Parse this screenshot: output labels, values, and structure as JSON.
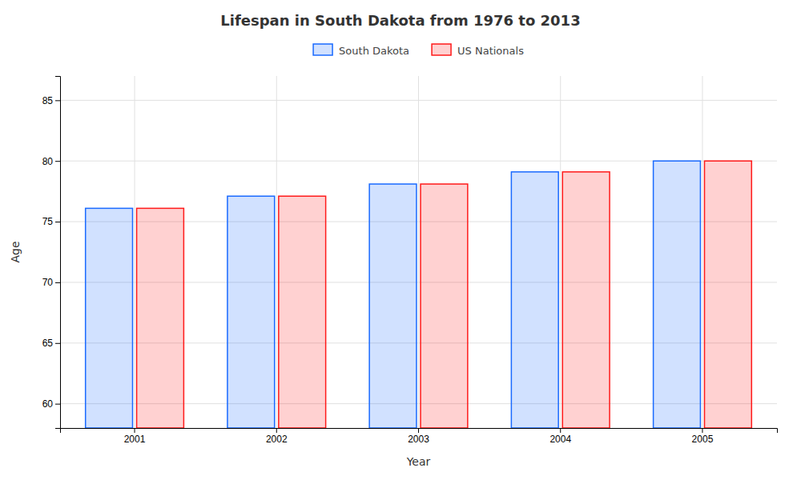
{
  "chart_data": {
    "type": "bar",
    "title": "Lifespan in South Dakota from 1976 to 2013",
    "x_label": "Year",
    "y_label": "Age",
    "categories": [
      "2001",
      "2002",
      "2003",
      "2004",
      "2005"
    ],
    "series": [
      {
        "name": "South Dakota",
        "color": "#1a6aff",
        "values": [
          76.1,
          77.1,
          78.1,
          79.1,
          80.0
        ]
      },
      {
        "name": "US Nationals",
        "color": "#ff1a1a",
        "values": [
          76.1,
          77.1,
          78.1,
          79.1,
          80.0
        ]
      }
    ],
    "ylim": [
      58,
      87
    ],
    "yticks": [
      60,
      65,
      70,
      75,
      80,
      85
    ],
    "grid": true,
    "legend": "top"
  }
}
